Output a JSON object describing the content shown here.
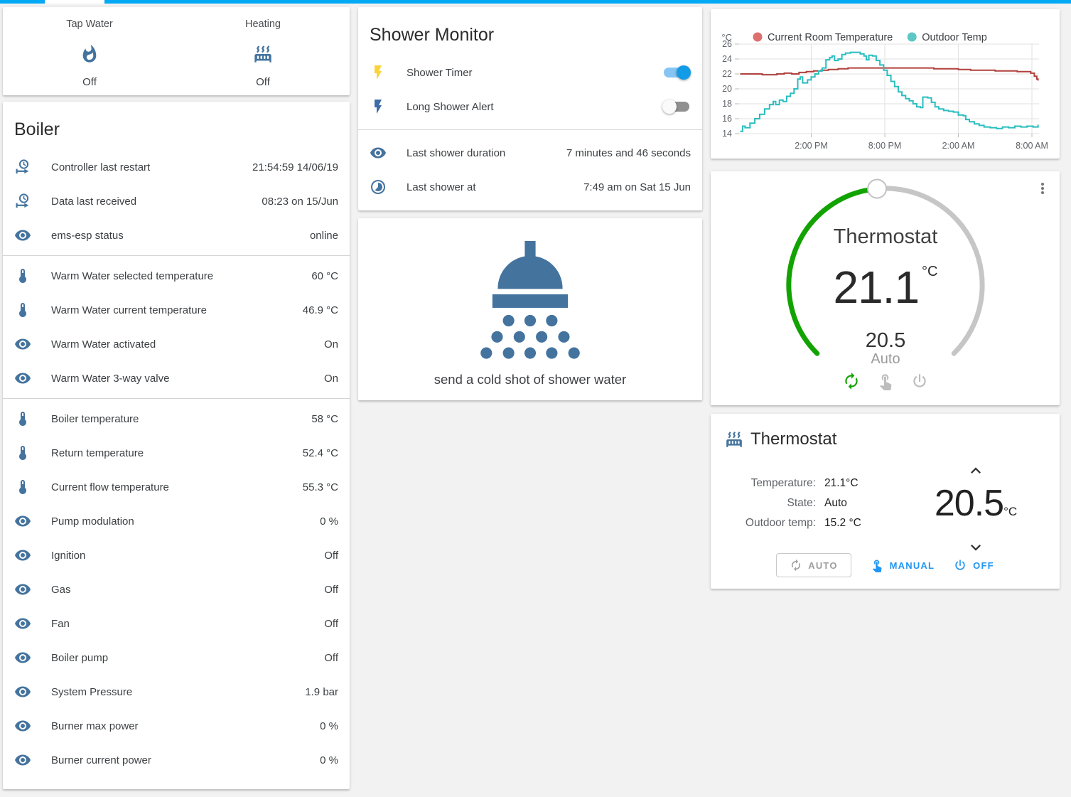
{
  "colors": {
    "accent": "#03a9f4",
    "icon_blue": "#44739e",
    "bolt_yellow": "#fbd238",
    "bolt_blue": "#3e6ca8",
    "toggle_on": "#129be7",
    "dial_green": "#12a300",
    "dial_gray": "#c6c6c6",
    "action_gray": "#bdbdbd",
    "button_blue": "#2196f3",
    "menu_gray": "#757575"
  },
  "header": {
    "active_tab_indicator": true
  },
  "states_card": {
    "items": [
      {
        "label": "Tap Water",
        "icon": "fire",
        "state": "Off"
      },
      {
        "label": "Heating",
        "icon": "radiator",
        "state": "Off"
      }
    ]
  },
  "boiler_card": {
    "title": "Boiler",
    "sections": [
      {
        "rows": [
          {
            "icon": "clock-start",
            "label": "Controller last restart",
            "value": "21:54:59 14/06/19"
          },
          {
            "icon": "clock-start",
            "label": "Data last received",
            "value": "08:23 on 15/Jun"
          },
          {
            "icon": "eye",
            "label": "ems-esp status",
            "value": "online"
          }
        ]
      },
      {
        "rows": [
          {
            "icon": "thermometer",
            "label": "Warm Water selected temperature",
            "value": "60 °C"
          },
          {
            "icon": "thermometer",
            "label": "Warm Water current temperature",
            "value": "46.9 °C"
          },
          {
            "icon": "eye",
            "label": "Warm Water activated",
            "value": "On"
          },
          {
            "icon": "eye",
            "label": "Warm Water 3-way valve",
            "value": "On"
          }
        ]
      },
      {
        "rows": [
          {
            "icon": "thermometer",
            "label": "Boiler temperature",
            "value": "58 °C"
          },
          {
            "icon": "thermometer",
            "label": "Return temperature",
            "value": "52.4 °C"
          },
          {
            "icon": "thermometer",
            "label": "Current flow temperature",
            "value": "55.3 °C"
          },
          {
            "icon": "eye",
            "label": "Pump modulation",
            "value": "0 %"
          },
          {
            "icon": "eye",
            "label": "Ignition",
            "value": "Off"
          },
          {
            "icon": "eye",
            "label": "Gas",
            "value": "Off"
          },
          {
            "icon": "eye",
            "label": "Fan",
            "value": "Off"
          },
          {
            "icon": "eye",
            "label": "Boiler pump",
            "value": "Off"
          },
          {
            "icon": "eye",
            "label": "System Pressure",
            "value": "1.9 bar"
          },
          {
            "icon": "eye",
            "label": "Burner max power",
            "value": "0 %"
          },
          {
            "icon": "eye",
            "label": "Burner current power",
            "value": "0 %"
          }
        ]
      }
    ]
  },
  "shower_monitor": {
    "title": "Shower Monitor",
    "toggles": [
      {
        "icon": "flash",
        "icon_color": "#fbd238",
        "label": "Shower Timer",
        "on": true
      },
      {
        "icon": "flash",
        "icon_color": "#3e6ca8",
        "label": "Long Shower Alert",
        "on": false
      }
    ],
    "rows": [
      {
        "icon": "eye",
        "label": "Last shower duration",
        "value": "7 minutes and 46 seconds"
      },
      {
        "icon": "timelapse",
        "label": "Last shower at",
        "value": "7:49 am on Sat 15 Jun"
      }
    ]
  },
  "shower_action": {
    "caption": "send a cold shot of shower water"
  },
  "chart_data": {
    "type": "line",
    "title": "",
    "y_axis": {
      "label": "°C",
      "ticks": [
        26,
        24,
        22,
        20,
        18,
        16,
        14
      ],
      "range": [
        14,
        26
      ],
      "grid": true
    },
    "x_axis": {
      "range_hours": [
        0,
        24.5
      ],
      "ticks": [
        {
          "t": 6,
          "label": "2:00 PM"
        },
        {
          "t": 12,
          "label": "8:00 PM"
        },
        {
          "t": 18,
          "label": "2:00 AM"
        },
        {
          "t": 24,
          "label": "8:00 AM"
        }
      ],
      "grid": true
    },
    "legend_position": "top",
    "series": [
      {
        "name": "Current Room Temperature",
        "dot_color": "#db706e",
        "line_color": "#b0413c",
        "points": [
          [
            0.2,
            22.0
          ],
          [
            1.5,
            22.0
          ],
          [
            2.0,
            21.9
          ],
          [
            2.6,
            21.9
          ],
          [
            3.2,
            22.0
          ],
          [
            3.8,
            22.1
          ],
          [
            4.4,
            22.0
          ],
          [
            5.0,
            22.2
          ],
          [
            5.6,
            22.3
          ],
          [
            6.2,
            22.4
          ],
          [
            6.8,
            22.5
          ],
          [
            7.4,
            22.6
          ],
          [
            8.2,
            22.7
          ],
          [
            9.0,
            22.8
          ],
          [
            10.0,
            22.8
          ],
          [
            11.0,
            22.8
          ],
          [
            12.0,
            22.8
          ],
          [
            13.0,
            22.8
          ],
          [
            14.0,
            22.8
          ],
          [
            15.0,
            22.8
          ],
          [
            16.0,
            22.7
          ],
          [
            17.0,
            22.7
          ],
          [
            18.0,
            22.6
          ],
          [
            19.0,
            22.5
          ],
          [
            20.0,
            22.5
          ],
          [
            21.0,
            22.4
          ],
          [
            22.0,
            22.4
          ],
          [
            22.8,
            22.3
          ],
          [
            23.5,
            22.3
          ],
          [
            23.9,
            22.1
          ],
          [
            24.2,
            21.7
          ],
          [
            24.4,
            21.3
          ],
          [
            24.5,
            21.1
          ]
        ]
      },
      {
        "name": "Outdoor Temp",
        "dot_color": "#5cc8c5",
        "line_color": "#2abdbf",
        "points": [
          [
            0.2,
            14.3
          ],
          [
            0.4,
            15.0
          ],
          [
            0.6,
            14.8
          ],
          [
            1.0,
            15.4
          ],
          [
            1.4,
            16.0
          ],
          [
            1.8,
            16.6
          ],
          [
            2.2,
            17.3
          ],
          [
            2.6,
            17.9
          ],
          [
            2.9,
            18.3
          ],
          [
            3.1,
            17.9
          ],
          [
            3.4,
            18.5
          ],
          [
            3.7,
            18.3
          ],
          [
            4.0,
            19.0
          ],
          [
            4.3,
            19.4
          ],
          [
            4.6,
            20.0
          ],
          [
            4.9,
            21.3
          ],
          [
            5.1,
            21.6
          ],
          [
            5.3,
            20.8
          ],
          [
            5.7,
            21.2
          ],
          [
            6.0,
            21.6
          ],
          [
            6.3,
            22.0
          ],
          [
            6.6,
            22.4
          ],
          [
            6.9,
            22.8
          ],
          [
            7.2,
            23.9
          ],
          [
            7.5,
            24.2
          ],
          [
            7.7,
            24.4
          ],
          [
            7.9,
            23.8
          ],
          [
            8.2,
            24.0
          ],
          [
            8.5,
            24.6
          ],
          [
            8.8,
            24.8
          ],
          [
            9.2,
            24.9
          ],
          [
            9.6,
            24.9
          ],
          [
            10.0,
            24.7
          ],
          [
            10.3,
            24.4
          ],
          [
            10.5,
            23.9
          ],
          [
            10.7,
            24.5
          ],
          [
            11.0,
            24.4
          ],
          [
            11.3,
            23.8
          ],
          [
            11.6,
            23.2
          ],
          [
            11.9,
            22.5
          ],
          [
            12.2,
            21.8
          ],
          [
            12.5,
            21.0
          ],
          [
            12.8,
            20.3
          ],
          [
            13.1,
            19.6
          ],
          [
            13.4,
            19.1
          ],
          [
            13.7,
            18.7
          ],
          [
            14.0,
            18.4
          ],
          [
            14.3,
            18.0
          ],
          [
            14.6,
            17.6
          ],
          [
            14.9,
            17.5
          ],
          [
            15.1,
            18.9
          ],
          [
            15.5,
            18.8
          ],
          [
            15.8,
            18.2
          ],
          [
            16.1,
            17.6
          ],
          [
            16.4,
            17.3
          ],
          [
            16.8,
            17.1
          ],
          [
            17.2,
            17.0
          ],
          [
            17.6,
            16.9
          ],
          [
            18.0,
            16.5
          ],
          [
            18.4,
            16.4
          ],
          [
            18.6,
            15.9
          ],
          [
            18.9,
            15.6
          ],
          [
            19.3,
            15.3
          ],
          [
            19.7,
            15.1
          ],
          [
            20.1,
            14.9
          ],
          [
            20.6,
            14.8
          ],
          [
            21.1,
            14.7
          ],
          [
            21.6,
            14.9
          ],
          [
            22.1,
            14.8
          ],
          [
            22.6,
            15.0
          ],
          [
            23.1,
            14.9
          ],
          [
            23.6,
            15.0
          ],
          [
            24.1,
            14.9
          ],
          [
            24.5,
            15.2
          ]
        ]
      }
    ]
  },
  "dial_card": {
    "title": "Thermostat",
    "current": "21.1",
    "unit": "°C",
    "setpoint": "20.5",
    "mode": "Auto",
    "arc": {
      "start_deg": -135,
      "knob_deg": -5,
      "end_deg": 135
    }
  },
  "thermostat_card": {
    "title": "Thermostat",
    "info": [
      {
        "label": "Temperature:",
        "value": "21.1°C"
      },
      {
        "label": "State:",
        "value": "Auto"
      },
      {
        "label": "Outdoor temp:",
        "value": "15.2 °C"
      }
    ],
    "target": "20.5",
    "target_unit": "°C",
    "buttons": [
      {
        "label": "AUTO",
        "icon": "autorenew",
        "style": "outlined"
      },
      {
        "label": "MANUAL",
        "icon": "hand",
        "style": "flat"
      },
      {
        "label": "OFF",
        "icon": "power",
        "style": "flat"
      }
    ]
  }
}
